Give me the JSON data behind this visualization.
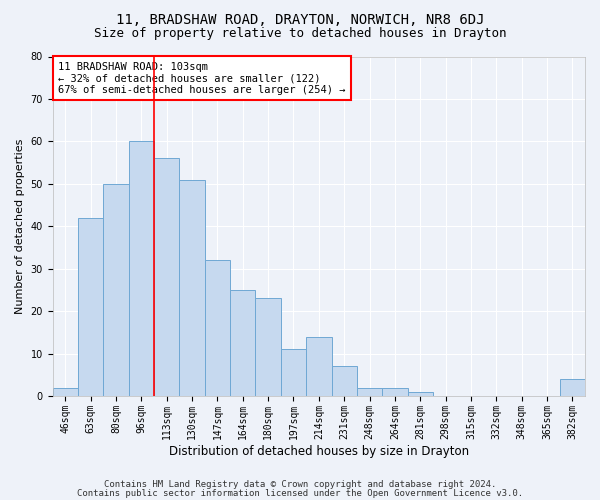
{
  "title1": "11, BRADSHAW ROAD, DRAYTON, NORWICH, NR8 6DJ",
  "title2": "Size of property relative to detached houses in Drayton",
  "xlabel": "Distribution of detached houses by size in Drayton",
  "ylabel": "Number of detached properties",
  "categories": [
    "46sqm",
    "63sqm",
    "80sqm",
    "96sqm",
    "113sqm",
    "130sqm",
    "147sqm",
    "164sqm",
    "180sqm",
    "197sqm",
    "214sqm",
    "231sqm",
    "248sqm",
    "264sqm",
    "281sqm",
    "298sqm",
    "315sqm",
    "332sqm",
    "348sqm",
    "365sqm",
    "382sqm"
  ],
  "values": [
    2,
    42,
    50,
    60,
    56,
    51,
    32,
    25,
    23,
    11,
    14,
    7,
    2,
    2,
    1,
    0,
    0,
    0,
    0,
    0,
    4
  ],
  "bar_color": "#c6d9ef",
  "bar_edgecolor": "#6fa8d4",
  "vline_x": 3.5,
  "vline_color": "red",
  "annotation_text": "11 BRADSHAW ROAD: 103sqm\n← 32% of detached houses are smaller (122)\n67% of semi-detached houses are larger (254) →",
  "annotation_box_color": "white",
  "annotation_box_edgecolor": "red",
  "ylim": [
    0,
    80
  ],
  "yticks": [
    0,
    10,
    20,
    30,
    40,
    50,
    60,
    70,
    80
  ],
  "footer1": "Contains HM Land Registry data © Crown copyright and database right 2024.",
  "footer2": "Contains public sector information licensed under the Open Government Licence v3.0.",
  "background_color": "#eef2f9",
  "grid_color": "white",
  "title1_fontsize": 10,
  "title2_fontsize": 9,
  "xlabel_fontsize": 8.5,
  "ylabel_fontsize": 8,
  "tick_fontsize": 7,
  "annotation_fontsize": 7.5,
  "footer_fontsize": 6.5
}
